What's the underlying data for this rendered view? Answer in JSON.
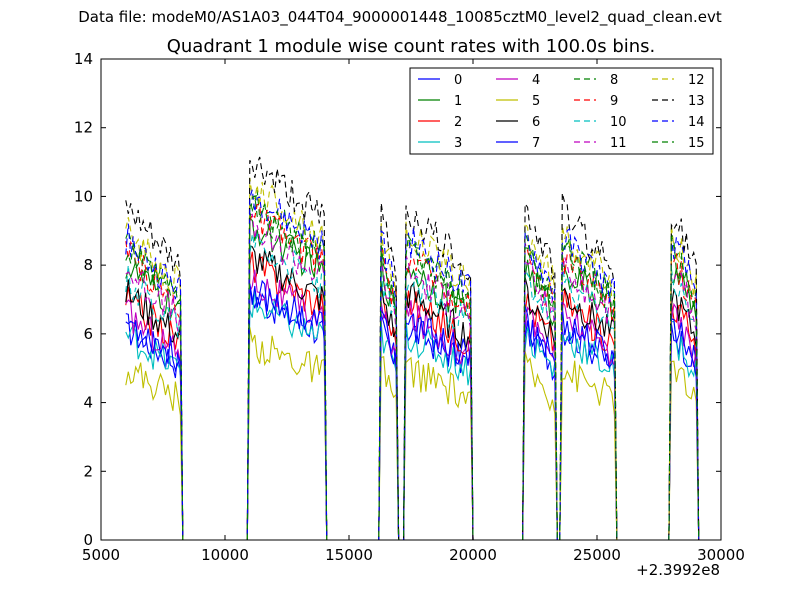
{
  "figure": {
    "suptitle": "Data file: modeM0/AS1A03_044T04_9000001448_10085cztM0_level2_quad_clean.evt",
    "title": "Quadrant 1 module wise count rates with 100.0s bins.",
    "x_offset_label": "+2.3992e8"
  },
  "chart_data": {
    "type": "line",
    "title": "Quadrant 1 module wise count rates with 100.0s bins.",
    "xlabel": "",
    "ylabel": "",
    "xlim": [
      5000,
      30000
    ],
    "ylim": [
      0,
      14
    ],
    "x_ticks": [
      "5000",
      "10000",
      "15000",
      "20000",
      "25000",
      "30000"
    ],
    "y_ticks": [
      "0",
      "2",
      "4",
      "6",
      "8",
      "10",
      "12",
      "14"
    ],
    "grid": false,
    "legend_position": "top-right",
    "segments": [
      {
        "start": 6000,
        "end": 8200
      },
      {
        "start": 11000,
        "end": 14000
      },
      {
        "start": 16300,
        "end": 16900
      },
      {
        "start": 17300,
        "end": 19900
      },
      {
        "start": 22100,
        "end": 23300
      },
      {
        "start": 23600,
        "end": 25700
      },
      {
        "start": 28000,
        "end": 29000
      }
    ],
    "series": [
      {
        "name": "0",
        "color": "#0000ff",
        "dash": false,
        "level": 6.2
      },
      {
        "name": "1",
        "color": "#008000",
        "dash": false,
        "level": 8.0
      },
      {
        "name": "2",
        "color": "#ff0000",
        "dash": false,
        "level": 7.0
      },
      {
        "name": "3",
        "color": "#00bfbf",
        "dash": false,
        "level": 6.0
      },
      {
        "name": "4",
        "color": "#bf00bf",
        "dash": false,
        "level": 6.6
      },
      {
        "name": "5",
        "color": "#bfbf00",
        "dash": false,
        "level": 5.0
      },
      {
        "name": "6",
        "color": "#000000",
        "dash": false,
        "level": 7.2
      },
      {
        "name": "7",
        "color": "#0000ff",
        "dash": false,
        "level": 6.4
      },
      {
        "name": "8",
        "color": "#008000",
        "dash": true,
        "level": 8.6
      },
      {
        "name": "9",
        "color": "#ff0000",
        "dash": true,
        "level": 8.3
      },
      {
        "name": "10",
        "color": "#00bfbf",
        "dash": true,
        "level": 7.6
      },
      {
        "name": "11",
        "color": "#bf00bf",
        "dash": true,
        "level": 7.9
      },
      {
        "name": "12",
        "color": "#bfbf00",
        "dash": true,
        "level": 9.0
      },
      {
        "name": "13",
        "color": "#000000",
        "dash": true,
        "level": 9.6
      },
      {
        "name": "14",
        "color": "#0000ff",
        "dash": true,
        "level": 8.8
      },
      {
        "name": "15",
        "color": "#008000",
        "dash": true,
        "level": 8.4
      }
    ]
  }
}
